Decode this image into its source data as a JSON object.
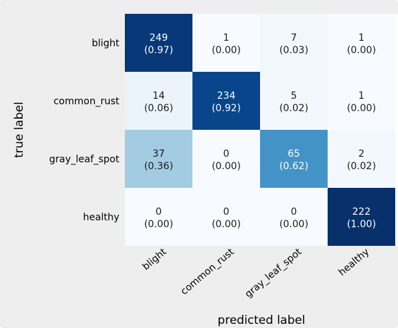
{
  "chart_data": {
    "type": "heatmap",
    "title": "",
    "xlabel": "predicted label",
    "ylabel": "true label",
    "x_categories": [
      "blight",
      "common_rust",
      "gray_leaf_spot",
      "healthy"
    ],
    "y_categories": [
      "blight",
      "common_rust",
      "gray_leaf_spot",
      "healthy"
    ],
    "counts": [
      [
        249,
        1,
        7,
        1
      ],
      [
        14,
        234,
        5,
        1
      ],
      [
        37,
        0,
        65,
        2
      ],
      [
        0,
        0,
        0,
        222
      ]
    ],
    "normalized": [
      [
        "0.97",
        "0.00",
        "0.03",
        "0.00"
      ],
      [
        "0.06",
        "0.92",
        "0.02",
        "0.00"
      ],
      [
        "0.36",
        "0.00",
        "0.62",
        "0.02"
      ],
      [
        "0.00",
        "0.00",
        "0.00",
        "1.00"
      ]
    ],
    "colormap": "Blues",
    "colorbar": false,
    "grid": false
  }
}
